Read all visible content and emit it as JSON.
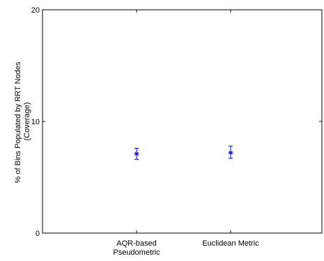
{
  "chart_data": {
    "type": "scatter",
    "title": "",
    "xlabel": "",
    "ylabel": [
      "% of Bins Populated by RRT Nodes",
      "(Coverage)"
    ],
    "categories": [
      [
        "AQR-based",
        "Pseudometric"
      ],
      [
        "Euclidean Metric"
      ]
    ],
    "series": [
      {
        "values": [
          7.1,
          7.2
        ],
        "error_low": [
          6.6,
          6.7
        ],
        "error_high": [
          7.6,
          7.8
        ]
      }
    ],
    "ylim": [
      0,
      20
    ],
    "yticks": [
      "0",
      "10",
      "20"
    ],
    "grid": false,
    "marker": "*",
    "color": "#0000ff"
  }
}
